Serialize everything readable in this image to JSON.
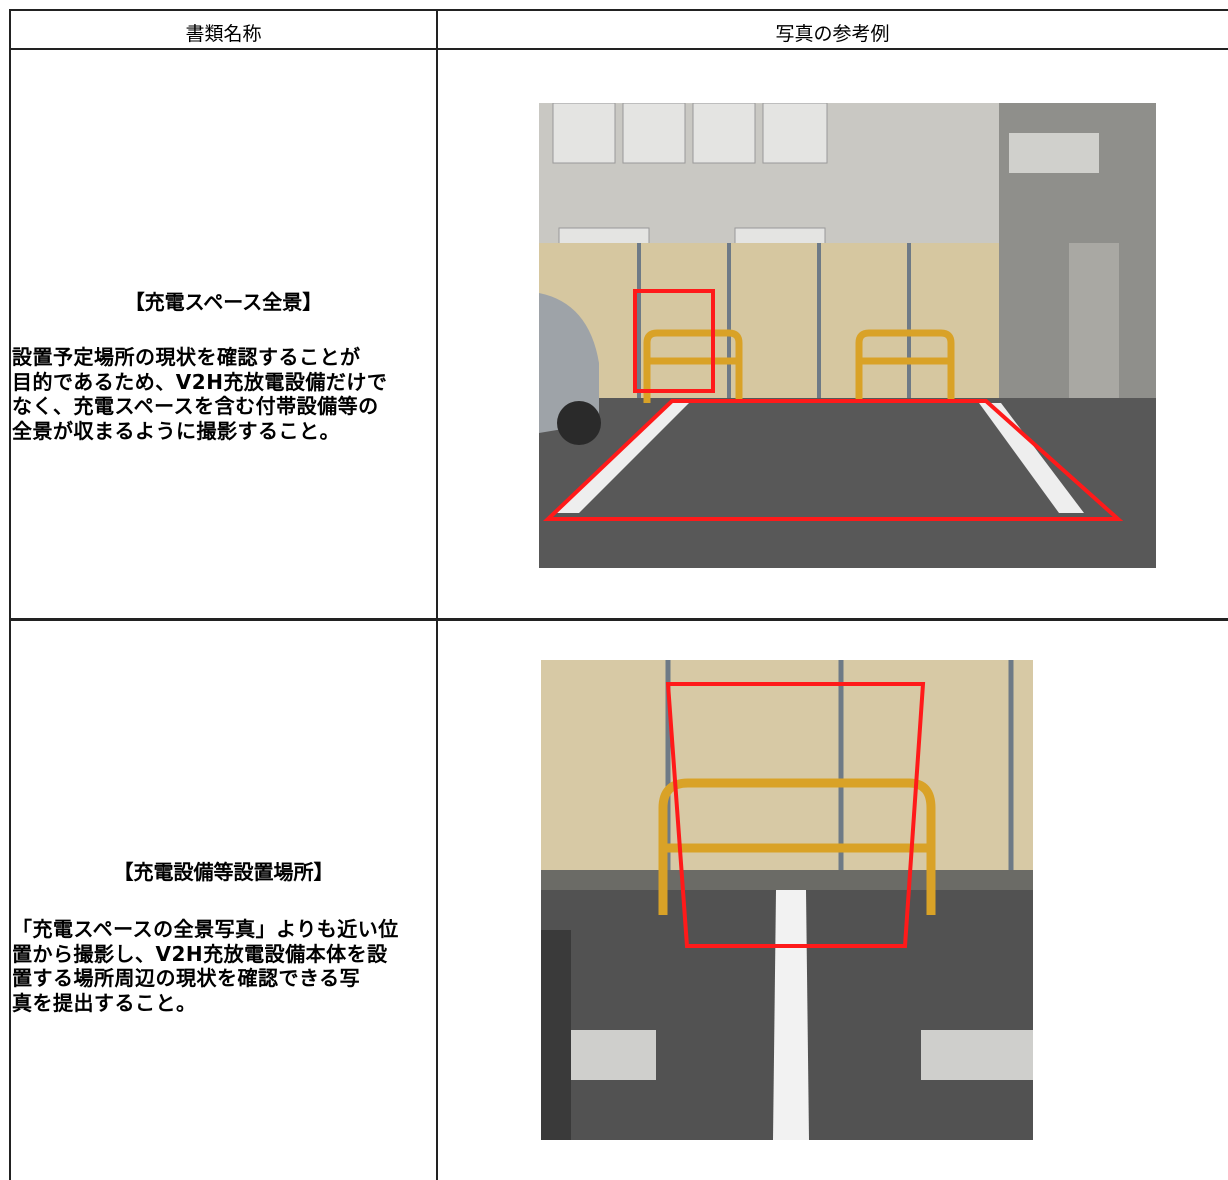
{
  "table": {
    "header": [
      "書類名称",
      "写真の参考例"
    ],
    "rows": [
      {
        "title": "【充電スペース全景】",
        "body": [
          "設置予定場所の現状を確認することが",
          "目的であるため、V2H充放電設備だけで",
          "なく、充電スペースを含む付帯設備等の",
          "全景が収まるように撮影すること。"
        ]
      },
      {
        "title": "【充電設備等設置場所】",
        "body": [
          "「充電スペースの全景写真」よりも近い位",
          "置から撮影し、V2H充放電設備本体を設",
          "置する場所周辺の現状を確認できる写",
          "真を提出すること。"
        ]
      }
    ]
  }
}
